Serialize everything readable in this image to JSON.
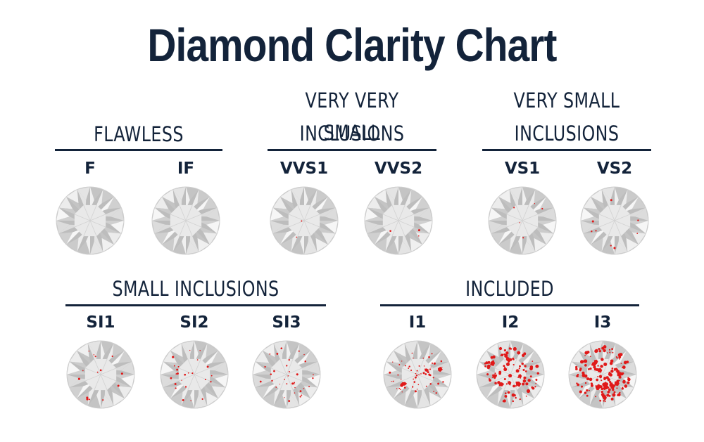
{
  "title": "Diamond Clarity Chart",
  "colors": {
    "text": "#13233a",
    "inclusion": "#e01919",
    "diamond_light": "#f4f4f4",
    "diamond_dark": "#bdbdbd"
  },
  "groups": [
    {
      "heading_lines": [
        "FLAWLESS"
      ],
      "grades": [
        {
          "label": "F",
          "inclusion_level": 0
        },
        {
          "label": "IF",
          "inclusion_level": 0
        }
      ]
    },
    {
      "heading_lines": [
        "VERY VERY SMALL",
        "INCLUSIONS"
      ],
      "grades": [
        {
          "label": "VVS1",
          "inclusion_level": 1
        },
        {
          "label": "VVS2",
          "inclusion_level": 2
        }
      ]
    },
    {
      "heading_lines": [
        "VERY SMALL",
        "INCLUSIONS"
      ],
      "grades": [
        {
          "label": "VS1",
          "inclusion_level": 3
        },
        {
          "label": "VS2",
          "inclusion_level": 4
        }
      ]
    },
    {
      "heading_lines": [
        "SMALL INCLUSIONS"
      ],
      "grades": [
        {
          "label": "SI1",
          "inclusion_level": 5
        },
        {
          "label": "SI2",
          "inclusion_level": 6
        },
        {
          "label": "SI3",
          "inclusion_level": 7
        }
      ]
    },
    {
      "heading_lines": [
        "INCLUDED"
      ],
      "grades": [
        {
          "label": "I1",
          "inclusion_level": 8
        },
        {
          "label": "I2",
          "inclusion_level": 9
        },
        {
          "label": "I3",
          "inclusion_level": 10
        }
      ]
    }
  ]
}
